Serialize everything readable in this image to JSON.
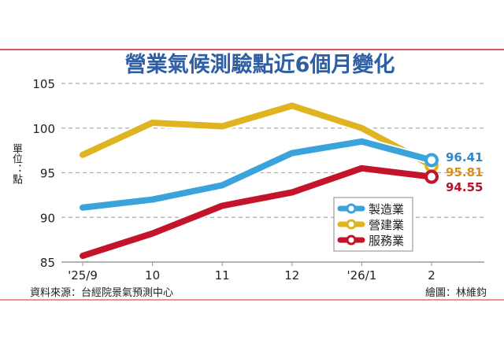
{
  "chart_data": {
    "type": "line",
    "title": "營業氣候測驗點近6個月變化",
    "ylabel": "單位：點",
    "categories": [
      "'25/9",
      "10",
      "11",
      "12",
      "'26/1",
      "2"
    ],
    "ylim": [
      85,
      105
    ],
    "yticks": [
      "85",
      "90",
      "95",
      "100",
      "105"
    ],
    "grid": true,
    "legend": "bottom-right",
    "series": [
      {
        "name": "製造業",
        "color": "#3aa3dc",
        "values": [
          91.1,
          92.0,
          93.6,
          97.2,
          98.5,
          96.41
        ],
        "end_label": "96.41"
      },
      {
        "name": "營建業",
        "color": "#e0b321",
        "values": [
          97.0,
          100.6,
          100.2,
          102.5,
          100.0,
          95.81
        ],
        "end_label": "95.81"
      },
      {
        "name": "服務業",
        "color": "#c4142a",
        "values": [
          85.7,
          88.2,
          91.3,
          92.8,
          95.5,
          94.55
        ],
        "end_label": "94.55"
      }
    ],
    "label_colors": [
      "#2f86c8",
      "#d98f1b",
      "#b5142a"
    ],
    "source": "資料來源：台經院景氣預測中心",
    "credit": "繪圖：林維鈞"
  },
  "colors": {
    "title": "#2e5fa3",
    "rule": "#d0202a"
  }
}
